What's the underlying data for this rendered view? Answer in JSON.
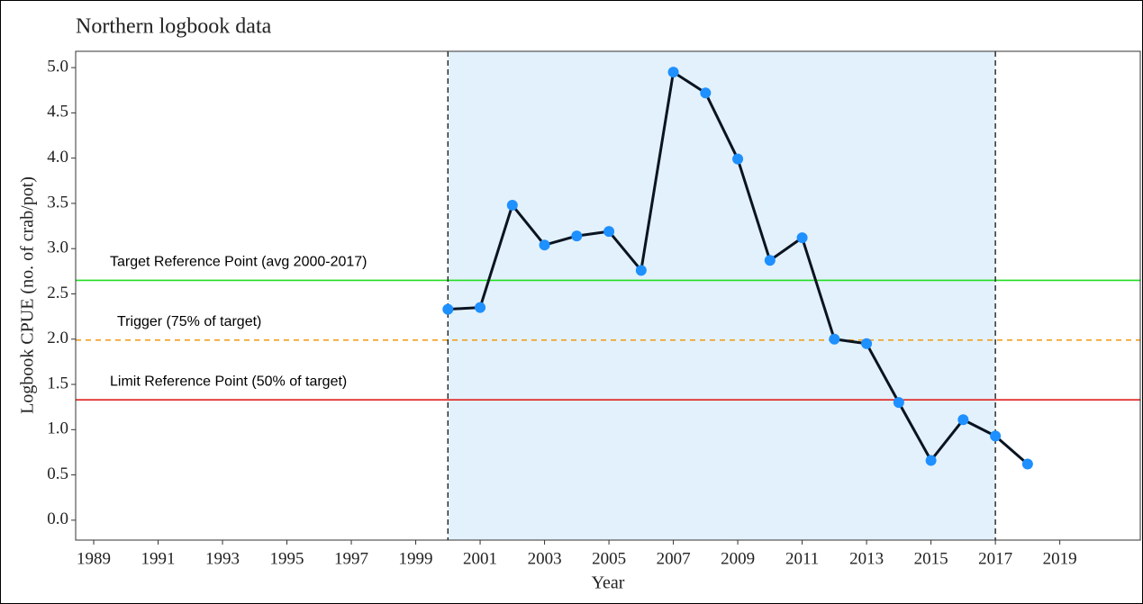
{
  "chart_data": {
    "type": "line",
    "title": "Northern logbook data",
    "x_label": "Year",
    "y_label": "Logbook CPUE (no. of crab/pot)",
    "x": [
      2000,
      2001,
      2002,
      2003,
      2004,
      2005,
      2006,
      2007,
      2008,
      2009,
      2010,
      2011,
      2012,
      2013,
      2014,
      2015,
      2016,
      2017,
      2018
    ],
    "series": [
      {
        "color": "#0a1420",
        "marker_color": "#1e90ff",
        "values": [
          2.33,
          2.35,
          3.48,
          3.04,
          3.14,
          3.19,
          2.76,
          4.95,
          4.72,
          3.99,
          2.87,
          3.12,
          2.0,
          1.95,
          1.3,
          0.66,
          1.11,
          0.93,
          0.62
        ]
      }
    ],
    "xlim": [
      1988.44,
      2021.5
    ],
    "xticks": [
      1989,
      1991,
      1993,
      1995,
      1997,
      1999,
      2001,
      2003,
      2005,
      2007,
      2009,
      2011,
      2013,
      2015,
      2017,
      2019
    ],
    "ylim": [
      -0.22,
      5.18
    ],
    "yticks": [
      {
        "value": 0,
        "label": "0.0"
      },
      0.5,
      {
        "value": 1,
        "label": "1.0"
      },
      1.5,
      {
        "value": 2,
        "label": "2.0"
      },
      2.5,
      {
        "value": 3,
        "label": "3.0"
      },
      3.5,
      {
        "value": 4,
        "label": "4.0"
      },
      4.5,
      {
        "value": 5,
        "label": "5.0"
      }
    ],
    "shaded_region": {
      "xlim": [
        2000,
        2017
      ],
      "color": "#e3f1fc"
    },
    "vlines": [
      2000,
      2017
    ],
    "reference_lines": [
      {
        "label": "Target Reference Point (avg 2000-2017)",
        "value": 2.65,
        "color": "#22dd22",
        "dashed": false
      },
      {
        "label": "Trigger (75% of target)",
        "value": 1.99,
        "color": "#f0a020",
        "dashed": true
      },
      {
        "label": "Limit Reference Point (50% of target)",
        "value": 1.33,
        "color": "#e02020",
        "dashed": false
      }
    ],
    "grid": false
  }
}
